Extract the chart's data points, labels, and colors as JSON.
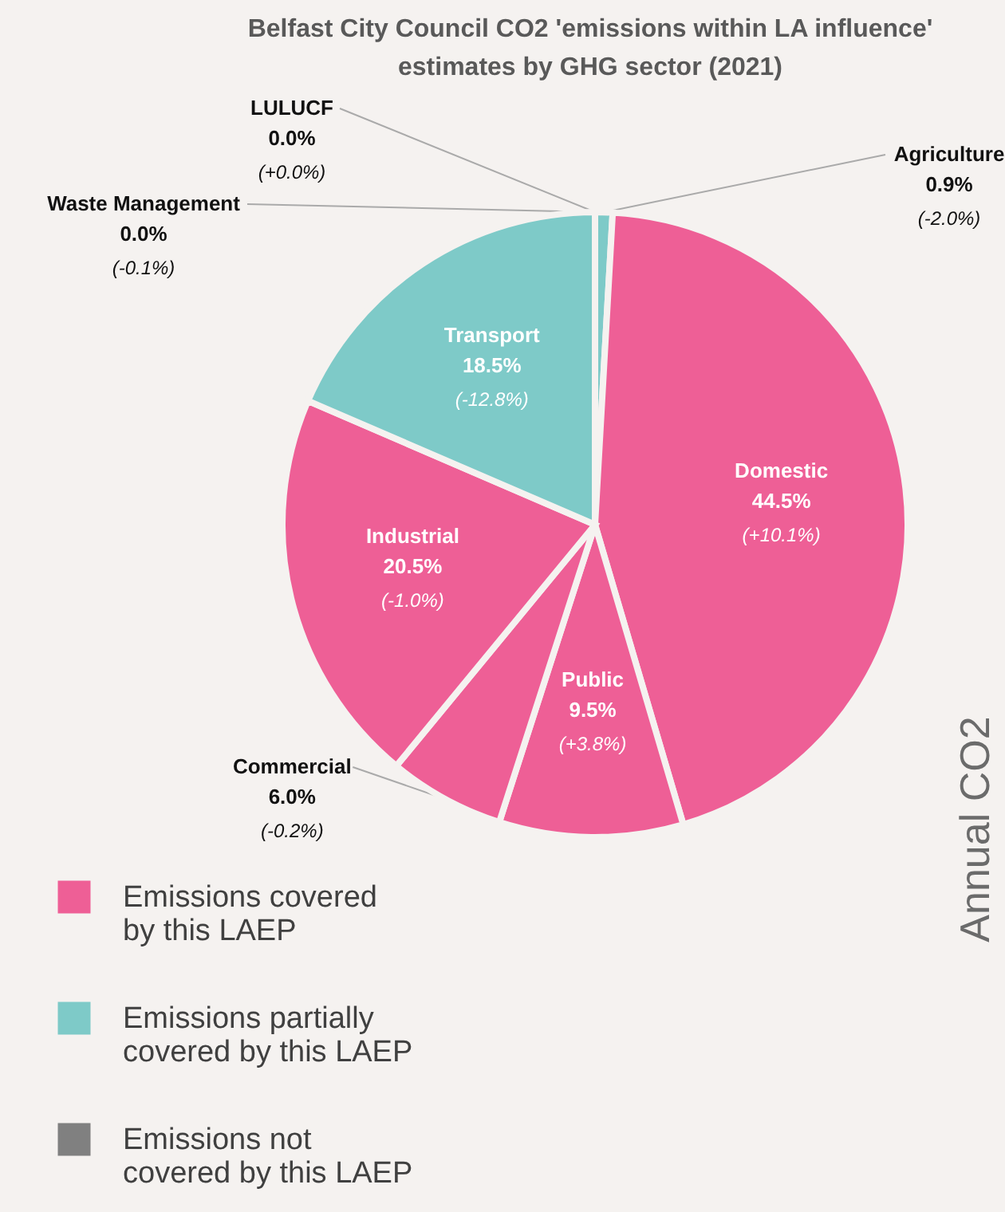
{
  "chart_data": {
    "type": "pie",
    "title": "Belfast City Council CO2 'emissions within LA influence' estimates by GHG sector (2021)",
    "categories": [
      "Agriculture",
      "Domestic",
      "Public",
      "Commercial",
      "Industrial",
      "Transport",
      "Waste Management",
      "LULUCF"
    ],
    "values": [
      0.9,
      44.5,
      9.5,
      6.0,
      20.5,
      18.5,
      0.0,
      0.0
    ],
    "colors": [
      "#7ecac8",
      "#ee5f96",
      "#ee5f96",
      "#ee5f96",
      "#ee5f96",
      "#7ecac8",
      "#808080",
      "#808080"
    ],
    "value_labels": [
      "0.9%",
      "44.5%",
      "9.5%",
      "6.0%",
      "20.5%",
      "18.5%",
      "0.0%",
      "0.0%"
    ],
    "annotations": [
      {
        "text": "(-2.0%)",
        "x": "Agriculture"
      },
      {
        "text": "(+10.1%)",
        "x": "Domestic"
      },
      {
        "text": "(+3.8%)",
        "x": "Public"
      },
      {
        "text": "(-0.2%)",
        "x": "Commercial"
      },
      {
        "text": "(-1.0%)",
        "x": "Industrial"
      },
      {
        "text": "(-12.8%)",
        "x": "Transport"
      },
      {
        "text": "(-0.1%)",
        "x": "Waste Management"
      },
      {
        "text": "(+0.0%)",
        "x": "LULUCF"
      },
      "Annual CO2",
      "Emissions covered by this LAEP",
      "Emissions partially covered by this LAEP",
      "Emissions not covered by this LAEP"
    ]
  }
}
